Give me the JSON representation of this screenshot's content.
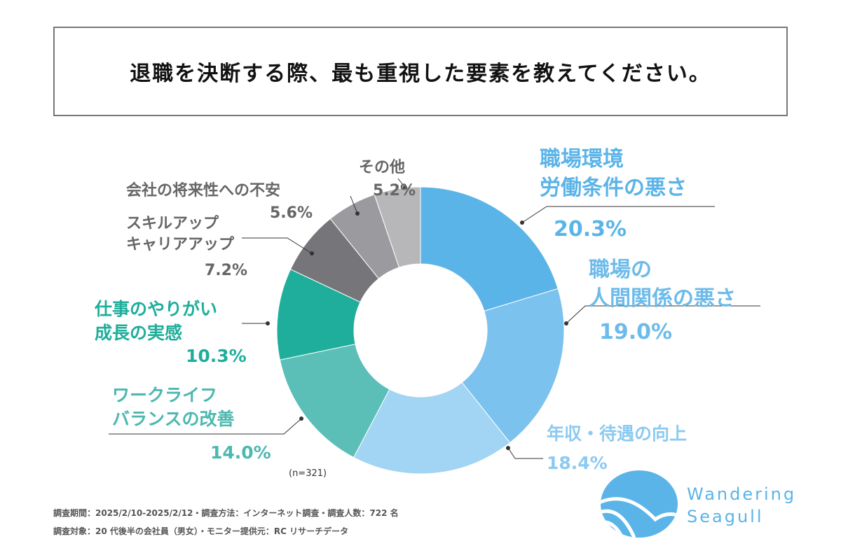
{
  "title": "退職を決断する際、最も重視した要素を教えてください。",
  "chart_data": {
    "type": "pie",
    "donut": true,
    "title": "退職を決断する際、最も重視した要素を教えてください。",
    "note": "(n=321)",
    "slices": [
      {
        "label": [
          "職場環境",
          "労働条件の悪さ"
        ],
        "value": 20.3,
        "text": "20.3%",
        "color": "#5BB4E8",
        "label_color": "#5BB4E8"
      },
      {
        "label": [
          "職場の",
          "人間関係の悪さ"
        ],
        "value": 19.0,
        "text": "19.0%",
        "color": "#7CC2EE",
        "label_color": "#6DBBEA"
      },
      {
        "label": [
          "年収・待遇の向上"
        ],
        "value": 18.4,
        "text": "18.4%",
        "color": "#A2D4F3",
        "label_color": "#8CCAF0"
      },
      {
        "label": [
          "ワークライフ",
          "バランスの改善"
        ],
        "value": 14.0,
        "text": "14.0%",
        "color": "#5BBFB8",
        "label_color": "#4CB8AF"
      },
      {
        "label": [
          "仕事のやりがい",
          "成長の実感"
        ],
        "value": 10.3,
        "text": "10.3%",
        "color": "#1FAE9B",
        "label_color": "#1FAE9B"
      },
      {
        "label": [
          "スキルアップ",
          "キャリアアップ"
        ],
        "value": 7.2,
        "text": "7.2%",
        "color": "#76767A",
        "label_color": "#666"
      },
      {
        "label": [
          "会社の将来性への不安"
        ],
        "value": 5.6,
        "text": "5.6%",
        "color": "#9B9B9F",
        "label_color": "#666"
      },
      {
        "label": [
          "その他"
        ],
        "value": 5.2,
        "text": "5.2%",
        "color": "#B7B7BA",
        "label_color": "#666"
      }
    ]
  },
  "footer": {
    "line1": "調査期間：2025/2/10-2025/2/12・調査方法：インターネット調査・調査人数：722 名",
    "line2": "調査対象：20 代後半の会社員（男女）・モニター提供元：RC リサーチデータ"
  },
  "logo": {
    "line1": "Wandering",
    "line2": "Seagull",
    "color": "#5BB4E8"
  }
}
